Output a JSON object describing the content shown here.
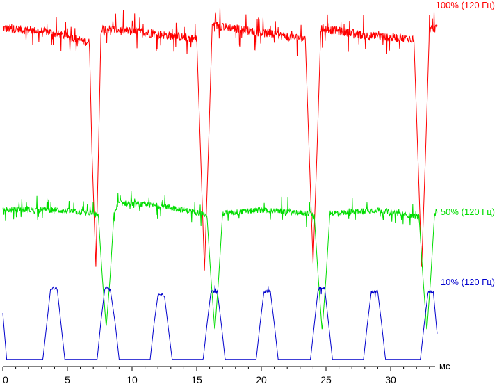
{
  "chart_data": {
    "type": "line",
    "title": "",
    "xlabel": "мс",
    "ylabel": "",
    "xlim": [
      0,
      33.5
    ],
    "ylim": [
      0,
      1
    ],
    "grid": false,
    "x_ticks": [
      0,
      5,
      10,
      15,
      20,
      25,
      30
    ],
    "x_tick_labels": [
      "0",
      "5",
      "10",
      "15",
      "20",
      "25",
      "30"
    ],
    "series": [
      {
        "name": "100% (120 Гц)",
        "color": "#ff0000",
        "points": [
          [
            0,
            0.95
          ],
          [
            3.5,
            0.94
          ],
          [
            6.7,
            0.91
          ],
          [
            6.9,
            0.6
          ],
          [
            7.2,
            0.28
          ],
          [
            7.4,
            0.6
          ],
          [
            7.6,
            0.95
          ],
          [
            10.5,
            0.94
          ],
          [
            15.0,
            0.92
          ],
          [
            15.3,
            0.6
          ],
          [
            15.6,
            0.27
          ],
          [
            15.9,
            0.6
          ],
          [
            16.2,
            0.96
          ],
          [
            19.5,
            0.94
          ],
          [
            23.4,
            0.92
          ],
          [
            23.7,
            0.6
          ],
          [
            24.0,
            0.29
          ],
          [
            24.3,
            0.6
          ],
          [
            24.6,
            0.95
          ],
          [
            28.0,
            0.93
          ],
          [
            31.8,
            0.92
          ],
          [
            32.1,
            0.6
          ],
          [
            32.4,
            0.28
          ],
          [
            32.7,
            0.6
          ],
          [
            33.0,
            0.95
          ],
          [
            33.6,
            0.95
          ]
        ]
      },
      {
        "name": "50% (120 Гц)",
        "color": "#00dd00",
        "points": [
          [
            0,
            0.44
          ],
          [
            4.0,
            0.44
          ],
          [
            7.0,
            0.43
          ],
          [
            7.4,
            0.42
          ],
          [
            7.7,
            0.25
          ],
          [
            8.0,
            0.11
          ],
          [
            8.3,
            0.25
          ],
          [
            8.6,
            0.43
          ],
          [
            9.0,
            0.46
          ],
          [
            12.5,
            0.45
          ],
          [
            15.5,
            0.43
          ],
          [
            15.8,
            0.42
          ],
          [
            16.1,
            0.25
          ],
          [
            16.4,
            0.1
          ],
          [
            16.7,
            0.25
          ],
          [
            17.0,
            0.43
          ],
          [
            20.0,
            0.44
          ],
          [
            23.8,
            0.43
          ],
          [
            24.1,
            0.42
          ],
          [
            24.4,
            0.25
          ],
          [
            24.7,
            0.1
          ],
          [
            25.0,
            0.25
          ],
          [
            25.3,
            0.43
          ],
          [
            29.0,
            0.44
          ],
          [
            32.2,
            0.42
          ],
          [
            32.5,
            0.25
          ],
          [
            32.8,
            0.1
          ],
          [
            33.1,
            0.25
          ],
          [
            33.4,
            0.43
          ],
          [
            33.6,
            0.44
          ]
        ]
      },
      {
        "name": "10% (120 Гц)",
        "color": "#0000cc",
        "points": [
          [
            0,
            0.15
          ],
          [
            0.3,
            0.02
          ],
          [
            3.1,
            0.02
          ],
          [
            3.4,
            0.12
          ],
          [
            3.7,
            0.22
          ],
          [
            4.2,
            0.22
          ],
          [
            4.5,
            0.12
          ],
          [
            4.8,
            0.02
          ],
          [
            7.3,
            0.02
          ],
          [
            7.6,
            0.13
          ],
          [
            7.9,
            0.22
          ],
          [
            8.3,
            0.22
          ],
          [
            8.7,
            0.12
          ],
          [
            9.0,
            0.02
          ],
          [
            11.4,
            0.02
          ],
          [
            11.7,
            0.12
          ],
          [
            12.0,
            0.2
          ],
          [
            12.5,
            0.2
          ],
          [
            12.8,
            0.11
          ],
          [
            13.1,
            0.02
          ],
          [
            15.5,
            0.02
          ],
          [
            15.8,
            0.12
          ],
          [
            16.1,
            0.21
          ],
          [
            16.6,
            0.21
          ],
          [
            16.9,
            0.12
          ],
          [
            17.2,
            0.02
          ],
          [
            19.6,
            0.02
          ],
          [
            19.9,
            0.12
          ],
          [
            20.2,
            0.21
          ],
          [
            20.7,
            0.21
          ],
          [
            21.0,
            0.12
          ],
          [
            21.3,
            0.02
          ],
          [
            23.8,
            0.02
          ],
          [
            24.1,
            0.12
          ],
          [
            24.4,
            0.22
          ],
          [
            24.9,
            0.22
          ],
          [
            25.2,
            0.12
          ],
          [
            25.5,
            0.02
          ],
          [
            27.9,
            0.02
          ],
          [
            28.2,
            0.12
          ],
          [
            28.5,
            0.21
          ],
          [
            29.0,
            0.21
          ],
          [
            29.3,
            0.12
          ],
          [
            29.6,
            0.02
          ],
          [
            32.3,
            0.02
          ],
          [
            32.6,
            0.12
          ],
          [
            32.9,
            0.21
          ],
          [
            33.3,
            0.21
          ],
          [
            33.6,
            0.09
          ]
        ]
      }
    ]
  }
}
